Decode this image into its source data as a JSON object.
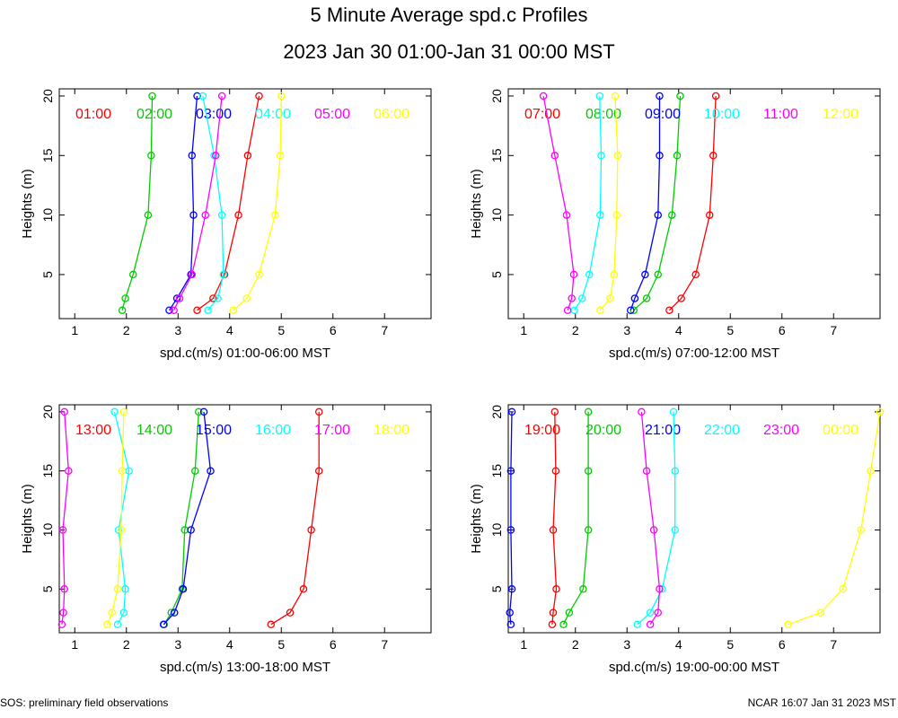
{
  "title": "5 Minute Average spd.c Profiles",
  "subtitle": "2023 Jan 30 01:00-Jan 31 00:00 MST",
  "footer_left": "SOS: preliminary field observations",
  "footer_right": "NCAR 16:07 Jan 31 2023 MST",
  "colors": [
    "#ff0000",
    "#00cc00",
    "#0000ff",
    "#00ffff",
    "#ff00ff",
    "#ffff00"
  ],
  "chart_data": [
    {
      "type": "line",
      "xlabel": "spd.c(m/s) 01:00-06:00 MST",
      "ylabel": "Heights (m)",
      "xlim": [
        0.7,
        7.9
      ],
      "ylim": [
        1.3,
        20.6
      ],
      "xticks": [
        1,
        2,
        3,
        4,
        5,
        6,
        7
      ],
      "yticks": [
        5,
        10,
        15,
        20
      ],
      "heights": [
        2,
        3,
        5,
        10,
        15,
        20
      ],
      "series": [
        {
          "name": "01:00",
          "values": [
            3.37,
            3.68,
            3.9,
            4.17,
            4.35,
            4.57
          ]
        },
        {
          "name": "02:00",
          "values": [
            1.92,
            1.98,
            2.13,
            2.42,
            2.48,
            2.5
          ]
        },
        {
          "name": "03:00",
          "values": [
            2.83,
            2.98,
            3.25,
            3.3,
            3.27,
            3.37
          ]
        },
        {
          "name": "04:00",
          "values": [
            3.58,
            3.77,
            3.88,
            3.85,
            3.7,
            3.48
          ]
        },
        {
          "name": "05:00",
          "values": [
            2.92,
            3.03,
            3.27,
            3.53,
            3.73,
            3.85
          ]
        },
        {
          "name": "06:00",
          "values": [
            4.07,
            4.33,
            4.57,
            4.88,
            4.98,
            5.0
          ]
        }
      ]
    },
    {
      "type": "line",
      "xlabel": "spd.c(m/s) 07:00-12:00 MST",
      "ylabel": "Heights (m)",
      "xlim": [
        0.7,
        7.9
      ],
      "ylim": [
        1.3,
        20.6
      ],
      "xticks": [
        1,
        2,
        3,
        4,
        5,
        6,
        7
      ],
      "yticks": [
        5,
        10,
        15,
        20
      ],
      "heights": [
        2,
        3,
        5,
        10,
        15,
        20
      ],
      "series": [
        {
          "name": "07:00",
          "values": [
            3.82,
            4.05,
            4.33,
            4.6,
            4.67,
            4.72
          ]
        },
        {
          "name": "08:00",
          "values": [
            3.13,
            3.38,
            3.6,
            3.87,
            3.97,
            4.03
          ]
        },
        {
          "name": "09:00",
          "values": [
            3.07,
            3.15,
            3.35,
            3.6,
            3.63,
            3.63
          ]
        },
        {
          "name": "10:00",
          "values": [
            1.98,
            2.13,
            2.27,
            2.48,
            2.5,
            2.47
          ]
        },
        {
          "name": "11:00",
          "values": [
            1.85,
            1.93,
            1.97,
            1.83,
            1.6,
            1.38
          ]
        },
        {
          "name": "12:00",
          "values": [
            2.48,
            2.67,
            2.75,
            2.8,
            2.82,
            2.77
          ]
        }
      ]
    },
    {
      "type": "line",
      "xlabel": "spd.c(m/s) 13:00-18:00 MST",
      "ylabel": "Heights (m)",
      "xlim": [
        0.7,
        7.9
      ],
      "ylim": [
        1.3,
        20.6
      ],
      "xticks": [
        1,
        2,
        3,
        4,
        5,
        6,
        7
      ],
      "yticks": [
        5,
        10,
        15,
        20
      ],
      "heights": [
        2,
        3,
        5,
        10,
        15,
        20
      ],
      "series": [
        {
          "name": "13:00",
          "values": [
            4.8,
            5.17,
            5.43,
            5.58,
            5.73,
            5.73
          ]
        },
        {
          "name": "14:00",
          "values": [
            2.73,
            2.87,
            3.08,
            3.13,
            3.33,
            3.4
          ]
        },
        {
          "name": "15:00",
          "values": [
            2.72,
            2.93,
            3.1,
            3.25,
            3.63,
            3.5
          ]
        },
        {
          "name": "16:00",
          "values": [
            1.83,
            1.95,
            1.98,
            1.85,
            2.05,
            1.77
          ]
        },
        {
          "name": "17:00",
          "values": [
            0.75,
            0.78,
            0.8,
            0.77,
            0.88,
            0.8
          ]
        },
        {
          "name": "18:00",
          "values": [
            1.63,
            1.72,
            1.83,
            1.9,
            1.92,
            1.95
          ]
        }
      ]
    },
    {
      "type": "line",
      "xlabel": "spd.c(m/s) 19:00-00:00 MST",
      "ylabel": "Heights (m)",
      "xlim": [
        0.7,
        7.9
      ],
      "ylim": [
        1.3,
        20.6
      ],
      "xticks": [
        1,
        2,
        3,
        4,
        5,
        6,
        7
      ],
      "yticks": [
        5,
        10,
        15,
        20
      ],
      "heights": [
        2,
        3,
        5,
        10,
        15,
        20
      ],
      "series": [
        {
          "name": "19:00",
          "values": [
            1.55,
            1.57,
            1.63,
            1.57,
            1.62,
            1.6
          ]
        },
        {
          "name": "20:00",
          "values": [
            1.77,
            1.88,
            2.15,
            2.25,
            2.25,
            2.25
          ]
        },
        {
          "name": "21:00",
          "values": [
            0.75,
            0.73,
            0.77,
            0.75,
            0.75,
            0.77
          ]
        },
        {
          "name": "22:00",
          "values": [
            3.2,
            3.45,
            3.68,
            3.93,
            3.93,
            3.9
          ]
        },
        {
          "name": "23:00",
          "values": [
            3.45,
            3.6,
            3.63,
            3.52,
            3.38,
            3.28
          ]
        },
        {
          "name": "00:00",
          "values": [
            6.12,
            6.75,
            7.18,
            7.53,
            7.72,
            7.9
          ]
        }
      ]
    }
  ]
}
